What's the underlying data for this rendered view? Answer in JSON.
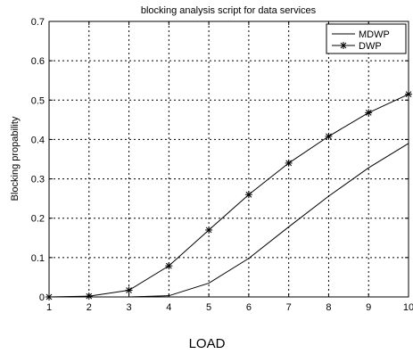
{
  "chart_data": {
    "type": "line",
    "title": "blocking analysis script for data services",
    "xlabel": "LOAD",
    "ylabel": "Blocking propability",
    "x": [
      1,
      2,
      3,
      4,
      5,
      6,
      7,
      8,
      9,
      10
    ],
    "xlim": [
      1,
      10
    ],
    "ylim": [
      0,
      0.7
    ],
    "xticks": [
      "1",
      "2",
      "3",
      "4",
      "5",
      "6",
      "7",
      "8",
      "9",
      "10"
    ],
    "yticks": [
      "0",
      "0.1",
      "0.2",
      "0.3",
      "0.4",
      "0.5",
      "0.6",
      "0.7"
    ],
    "grid": true,
    "legend_position": "top-right",
    "series": [
      {
        "name": "MDWP",
        "marker": "none",
        "values": [
          0,
          0,
          0,
          0.003,
          0.035,
          0.098,
          0.178,
          0.256,
          0.328,
          0.39
        ]
      },
      {
        "name": "DWP",
        "marker": "star",
        "values": [
          0,
          0.002,
          0.017,
          0.079,
          0.17,
          0.26,
          0.34,
          0.408,
          0.468,
          0.515
        ]
      }
    ]
  }
}
